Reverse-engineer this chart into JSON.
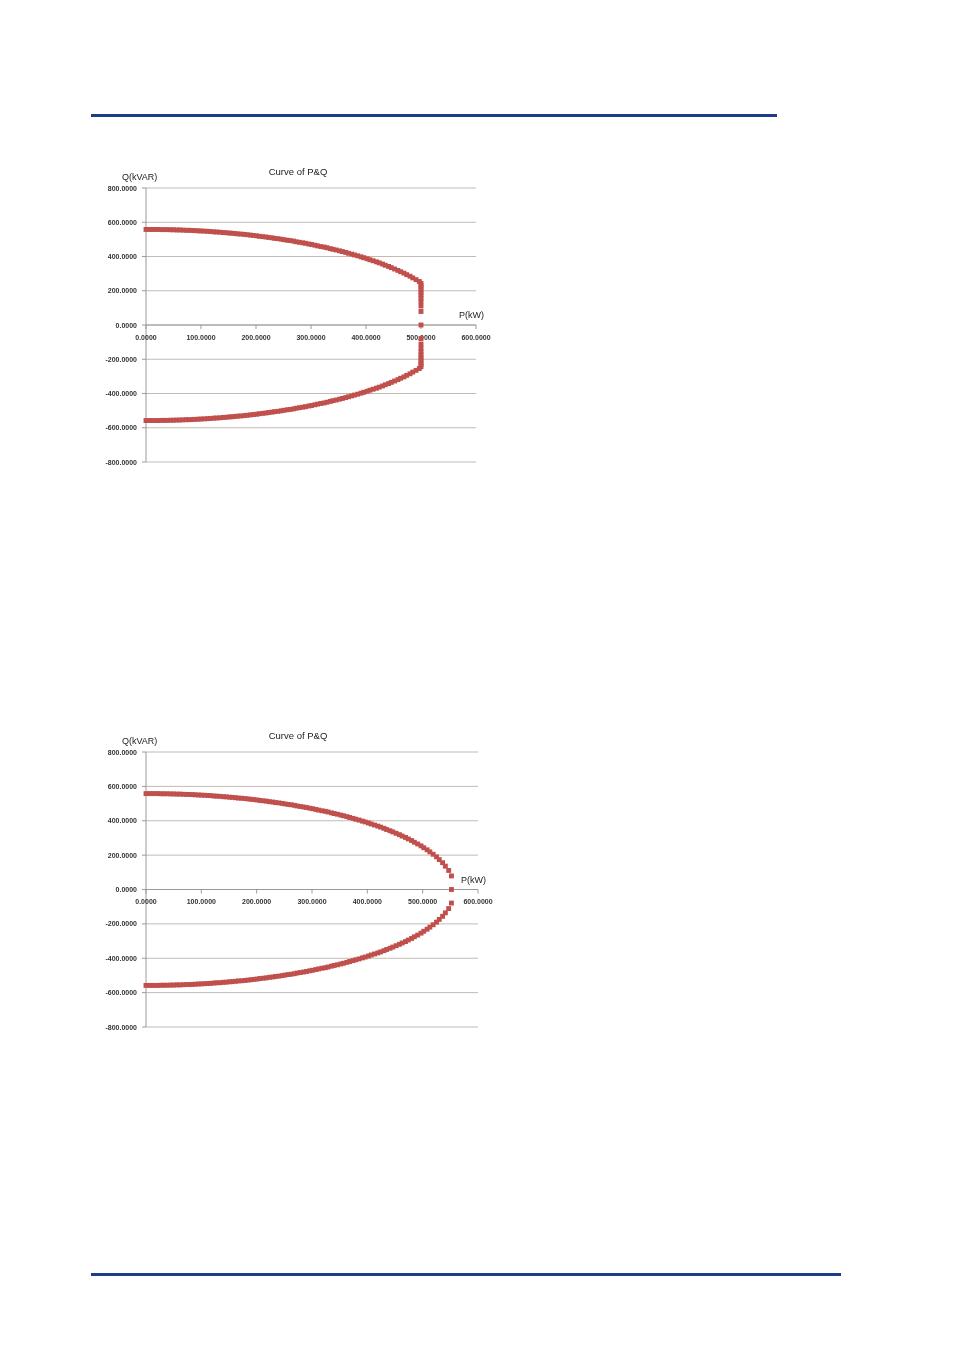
{
  "chart_data": [
    {
      "type": "scatter",
      "title": "Curve of P&Q",
      "xlabel": "P(kW)",
      "ylabel": "Q(kVAR)",
      "marker": "square",
      "grid": "y",
      "xlim": [
        0,
        600
      ],
      "ylim": [
        -800,
        800
      ],
      "xticks": [
        {
          "value": 0,
          "label": "0.0000"
        },
        {
          "value": 100,
          "label": "100.0000"
        },
        {
          "value": 200,
          "label": "200.0000"
        },
        {
          "value": 300,
          "label": "300.0000"
        },
        {
          "value": 400,
          "label": "400.0000"
        },
        {
          "value": 500,
          "label": "500.0000"
        },
        {
          "value": 600,
          "label": "600.0000"
        }
      ],
      "yticks": [
        {
          "value": 800,
          "label": "800.0000"
        },
        {
          "value": 600,
          "label": "600.0000"
        },
        {
          "value": 400,
          "label": "400.0000"
        },
        {
          "value": 200,
          "label": "200.0000"
        },
        {
          "value": 0,
          "label": "0.0000"
        },
        {
          "value": -200,
          "label": "-200.0000"
        },
        {
          "value": -400,
          "label": "-400.0000"
        },
        {
          "value": -600,
          "label": "-600.0000"
        },
        {
          "value": -800,
          "label": "-800.0000"
        }
      ],
      "x": [
        0,
        6,
        11,
        17,
        22,
        28,
        33,
        39,
        45,
        50,
        56,
        61,
        67,
        73,
        78,
        84,
        89,
        95,
        100,
        106,
        112,
        117,
        123,
        128,
        134,
        140,
        145,
        151,
        156,
        162,
        167,
        173,
        179,
        184,
        190,
        195,
        201,
        206,
        212,
        218,
        223,
        229,
        234,
        240,
        246,
        251,
        257,
        262,
        268,
        273,
        279,
        285,
        290,
        296,
        301,
        307,
        312,
        318,
        324,
        329,
        335,
        340,
        346,
        352,
        357,
        363,
        368,
        374,
        379,
        385,
        391,
        396,
        402,
        407,
        413,
        419,
        424,
        430,
        435,
        441,
        446,
        452,
        458,
        463,
        469,
        474,
        480,
        485,
        491,
        497,
        500,
        500,
        500,
        500,
        500,
        500,
        500,
        500,
        500,
        500,
        500
      ],
      "series": [
        {
          "color": "#c0504d",
          "values": [
            558,
            558,
            558,
            558,
            558,
            557,
            557,
            557,
            556,
            556,
            555,
            555,
            554,
            553,
            553,
            552,
            551,
            550,
            549,
            548,
            547,
            546,
            544,
            543,
            542,
            540,
            539,
            537,
            536,
            534,
            532,
            531,
            529,
            527,
            525,
            523,
            521,
            518,
            516,
            514,
            511,
            509,
            506,
            504,
            501,
            498,
            495,
            493,
            490,
            486,
            483,
            480,
            477,
            473,
            470,
            466,
            462,
            458,
            455,
            451,
            446,
            442,
            438,
            433,
            429,
            424,
            419,
            414,
            409,
            404,
            398,
            393,
            387,
            381,
            375,
            369,
            363,
            356,
            349,
            342,
            335,
            327,
            319,
            311,
            303,
            294,
            285,
            275,
            265,
            254,
            243,
            231,
            219,
            205,
            190,
            174,
            156,
            136,
            111,
            79,
            0
          ]
        },
        {
          "color": "#c0504d",
          "values": [
            -558,
            -558,
            -558,
            -558,
            -558,
            -557,
            -557,
            -557,
            -556,
            -556,
            -555,
            -555,
            -554,
            -553,
            -553,
            -552,
            -551,
            -550,
            -549,
            -548,
            -547,
            -546,
            -544,
            -543,
            -542,
            -540,
            -539,
            -537,
            -536,
            -534,
            -532,
            -531,
            -529,
            -527,
            -525,
            -523,
            -521,
            -518,
            -516,
            -514,
            -511,
            -509,
            -506,
            -504,
            -501,
            -498,
            -495,
            -493,
            -490,
            -486,
            -483,
            -480,
            -477,
            -473,
            -470,
            -466,
            -462,
            -458,
            -455,
            -451,
            -446,
            -442,
            -438,
            -433,
            -429,
            -424,
            -419,
            -414,
            -409,
            -404,
            -398,
            -393,
            -387,
            -381,
            -375,
            -369,
            -363,
            -356,
            -349,
            -342,
            -335,
            -327,
            -319,
            -311,
            -303,
            -294,
            -285,
            -275,
            -265,
            -254,
            -243,
            -231,
            -219,
            -205,
            -190,
            -174,
            -156,
            -136,
            -111,
            -79,
            null
          ]
        }
      ]
    },
    {
      "type": "scatter",
      "title": "Curve of P&Q",
      "xlabel": "P(kW)",
      "ylabel": "Q(kVAR)",
      "marker": "square",
      "grid": "y",
      "xlim": [
        0,
        600
      ],
      "ylim": [
        -800,
        800
      ],
      "xticks": [
        {
          "value": 0,
          "label": "0.0000"
        },
        {
          "value": 100,
          "label": "100.0000"
        },
        {
          "value": 200,
          "label": "200.0000"
        },
        {
          "value": 300,
          "label": "300.0000"
        },
        {
          "value": 400,
          "label": "400.0000"
        },
        {
          "value": 500,
          "label": "500.0000"
        },
        {
          "value": 600,
          "label": "600.0000"
        }
      ],
      "yticks": [
        {
          "value": 800,
          "label": "800.0000"
        },
        {
          "value": 600,
          "label": "600.0000"
        },
        {
          "value": 400,
          "label": "400.0000"
        },
        {
          "value": 200,
          "label": "200.0000"
        },
        {
          "value": 0,
          "label": "0.0000"
        },
        {
          "value": -200,
          "label": "-200.0000"
        },
        {
          "value": -400,
          "label": "-400.0000"
        },
        {
          "value": -600,
          "label": "-600.0000"
        },
        {
          "value": -800,
          "label": "-800.0000"
        }
      ],
      "x": [
        0,
        6,
        11,
        17,
        22,
        28,
        33,
        39,
        45,
        50,
        56,
        61,
        67,
        73,
        78,
        84,
        89,
        95,
        100,
        106,
        112,
        117,
        123,
        128,
        134,
        140,
        145,
        151,
        156,
        162,
        167,
        173,
        179,
        184,
        190,
        195,
        201,
        206,
        212,
        218,
        223,
        229,
        234,
        240,
        246,
        251,
        257,
        262,
        268,
        273,
        279,
        285,
        290,
        296,
        301,
        307,
        312,
        318,
        324,
        329,
        335,
        340,
        346,
        352,
        357,
        363,
        368,
        374,
        379,
        385,
        391,
        396,
        402,
        407,
        413,
        419,
        424,
        430,
        435,
        441,
        446,
        452,
        458,
        463,
        469,
        474,
        480,
        485,
        491,
        497,
        502,
        508,
        513,
        519,
        525,
        530,
        536,
        541,
        547,
        552,
        552
      ],
      "series": [
        {
          "color": "#c0504d",
          "values": [
            558,
            558,
            558,
            558,
            558,
            557,
            557,
            557,
            556,
            556,
            555,
            555,
            554,
            553,
            553,
            552,
            551,
            550,
            549,
            548,
            547,
            546,
            544,
            543,
            542,
            540,
            539,
            537,
            536,
            534,
            532,
            531,
            529,
            527,
            525,
            523,
            521,
            518,
            516,
            514,
            511,
            509,
            506,
            504,
            501,
            498,
            495,
            493,
            490,
            486,
            483,
            480,
            477,
            473,
            470,
            466,
            462,
            458,
            455,
            451,
            446,
            442,
            438,
            433,
            429,
            424,
            419,
            414,
            409,
            404,
            398,
            393,
            387,
            381,
            375,
            369,
            363,
            356,
            349,
            342,
            335,
            327,
            319,
            311,
            303,
            294,
            285,
            275,
            265,
            254,
            243,
            231,
            219,
            205,
            190,
            174,
            156,
            136,
            111,
            79,
            0
          ]
        },
        {
          "color": "#c0504d",
          "values": [
            -558,
            -558,
            -558,
            -558,
            -558,
            -557,
            -557,
            -557,
            -556,
            -556,
            -555,
            -555,
            -554,
            -553,
            -553,
            -552,
            -551,
            -550,
            -549,
            -548,
            -547,
            -546,
            -544,
            -543,
            -542,
            -540,
            -539,
            -537,
            -536,
            -534,
            -532,
            -531,
            -529,
            -527,
            -525,
            -523,
            -521,
            -518,
            -516,
            -514,
            -511,
            -509,
            -506,
            -504,
            -501,
            -498,
            -495,
            -493,
            -490,
            -486,
            -483,
            -480,
            -477,
            -473,
            -470,
            -466,
            -462,
            -458,
            -455,
            -451,
            -446,
            -442,
            -438,
            -433,
            -429,
            -424,
            -419,
            -414,
            -409,
            -404,
            -398,
            -393,
            -387,
            -381,
            -375,
            -369,
            -363,
            -356,
            -349,
            -342,
            -335,
            -327,
            -319,
            -311,
            -303,
            -294,
            -285,
            -275,
            -265,
            -254,
            -243,
            -231,
            -219,
            -205,
            -190,
            -174,
            -156,
            -136,
            -111,
            -79,
            null
          ]
        }
      ]
    }
  ]
}
